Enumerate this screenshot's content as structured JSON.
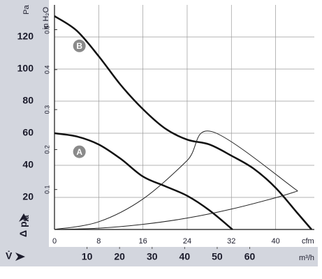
{
  "chart_data": {
    "type": "line",
    "y_unit": "Pa",
    "y2_unit": "in H₂O",
    "y_label": "Δ p",
    "y_label_sub": "fa",
    "x_label": "V̇",
    "x_unit": "cfm",
    "x2_unit": "m³/h",
    "xlim": [
      0,
      47
    ],
    "xticks": [
      0,
      8,
      16,
      24,
      32,
      40
    ],
    "x2lim": [
      0,
      79.85
    ],
    "x2ticks": [
      10,
      20,
      30,
      40,
      50,
      60
    ],
    "ylim": [
      0,
      140
    ],
    "yticks": [
      20,
      40,
      60,
      80,
      100,
      120
    ],
    "y2lim": [
      0,
      0.562
    ],
    "y2ticks": [
      0.1,
      0.2,
      0.3,
      0.4,
      0.5
    ],
    "grid": true,
    "series": [
      {
        "name": "B",
        "color": "#111111",
        "x": [
          0,
          4,
          8,
          12,
          16,
          20,
          24,
          28,
          32,
          36,
          40,
          44,
          46.5
        ],
        "values": [
          133,
          124,
          108,
          90,
          75,
          63,
          56,
          53,
          46,
          38,
          26,
          10,
          0
        ]
      },
      {
        "name": "A",
        "color": "#111111",
        "x": [
          0,
          4,
          8,
          12,
          16,
          20,
          24,
          28,
          32.2
        ],
        "values": [
          60,
          58,
          53,
          44,
          33,
          27,
          21,
          12,
          0
        ]
      },
      {
        "color": "#222222",
        "x": [
          0,
          8,
          16,
          24,
          28.5,
          44
        ],
        "values": [
          0,
          4.8,
          19,
          43,
          61,
          24
        ]
      },
      {
        "color": "#222222",
        "x": [
          0,
          8,
          16,
          24,
          32,
          40,
          44
        ],
        "values": [
          0,
          0.8,
          3.2,
          7.1,
          12.7,
          19.8,
          24
        ]
      }
    ]
  }
}
